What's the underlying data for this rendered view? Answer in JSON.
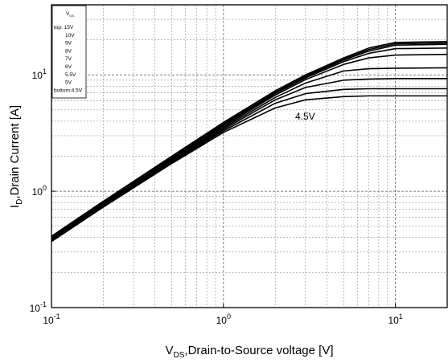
{
  "chart_data": {
    "type": "line",
    "title": "",
    "xlabel": {
      "main": "V",
      "sub": "DS",
      "rest": ",Drain-to-Source voltage [V]"
    },
    "ylabel": {
      "main": "I",
      "sub": "D",
      "rest": ",Drain Current [A]"
    },
    "x_scale": "log",
    "y_scale": "log",
    "xlim": [
      0.1,
      20
    ],
    "ylim": [
      0.1,
      40
    ],
    "x_ticks": [
      {
        "value": 0.1,
        "base": "10",
        "exp": "-1"
      },
      {
        "value": 1,
        "base": "10",
        "exp": "0"
      },
      {
        "value": 10,
        "base": "10",
        "exp": "1"
      }
    ],
    "y_ticks": [
      {
        "value": 0.1,
        "base": "10",
        "exp": "-1"
      },
      {
        "value": 1,
        "base": "10",
        "exp": "0"
      },
      {
        "value": 10,
        "base": "10",
        "exp": "1"
      }
    ],
    "grid": true,
    "legend": {
      "position": "top-left",
      "title_main": "V",
      "title_sub": "GS",
      "entries": [
        "top: 15V",
        "10V",
        "9V",
        "8V",
        "7V",
        "6V",
        "5.5V",
        "5V",
        "bottom:4.5V"
      ]
    },
    "annotation": {
      "text": "4.5V",
      "x": 4.2,
      "y": 4.5
    },
    "series": [
      {
        "name": "15V",
        "x": [
          0.1,
          0.2,
          0.5,
          1,
          2,
          3,
          5,
          7,
          10,
          20
        ],
        "y": [
          0.41,
          0.82,
          2.0,
          3.9,
          7.3,
          10.0,
          14.0,
          17.0,
          19.0,
          19.3
        ]
      },
      {
        "name": "10V",
        "x": [
          0.1,
          0.2,
          0.5,
          1,
          2,
          3,
          5,
          7,
          10,
          20
        ],
        "y": [
          0.4,
          0.8,
          1.95,
          3.8,
          7.1,
          9.8,
          13.7,
          16.5,
          18.5,
          18.8
        ]
      },
      {
        "name": "9V",
        "x": [
          0.1,
          0.2,
          0.5,
          1,
          2,
          3,
          5,
          7,
          10,
          20
        ],
        "y": [
          0.4,
          0.79,
          1.93,
          3.75,
          7.0,
          9.6,
          13.4,
          16.0,
          18.0,
          18.3
        ]
      },
      {
        "name": "8V",
        "x": [
          0.1,
          0.2,
          0.5,
          1,
          2,
          3,
          5,
          7,
          10,
          20
        ],
        "y": [
          0.39,
          0.78,
          1.9,
          3.7,
          6.9,
          9.4,
          13.0,
          15.3,
          16.8,
          17.0
        ]
      },
      {
        "name": "7V",
        "x": [
          0.1,
          0.2,
          0.5,
          1,
          2,
          3,
          5,
          7,
          10,
          20
        ],
        "y": [
          0.39,
          0.77,
          1.87,
          3.6,
          6.7,
          9.1,
          12.3,
          14.0,
          14.8,
          15.0
        ]
      },
      {
        "name": "6V",
        "x": [
          0.1,
          0.2,
          0.5,
          1,
          2,
          3,
          5,
          7,
          10,
          20
        ],
        "y": [
          0.38,
          0.76,
          1.83,
          3.5,
          6.4,
          8.5,
          10.8,
          11.3,
          11.4,
          11.5
        ]
      },
      {
        "name": "5.5V",
        "x": [
          0.1,
          0.2,
          0.5,
          1,
          2,
          3,
          5,
          7,
          10,
          20
        ],
        "y": [
          0.38,
          0.75,
          1.8,
          3.4,
          6.1,
          7.8,
          9.0,
          9.2,
          9.3,
          9.3
        ]
      },
      {
        "name": "5V",
        "x": [
          0.1,
          0.2,
          0.5,
          1,
          2,
          3,
          5,
          7,
          10,
          20
        ],
        "y": [
          0.38,
          0.74,
          1.77,
          3.3,
          5.7,
          6.9,
          7.5,
          7.6,
          7.6,
          7.6
        ]
      },
      {
        "name": "4.5V",
        "x": [
          0.1,
          0.2,
          0.5,
          1,
          2,
          3,
          5,
          7,
          10,
          20
        ],
        "y": [
          0.37,
          0.73,
          1.73,
          3.2,
          5.2,
          6.1,
          6.5,
          6.6,
          6.6,
          6.6
        ]
      }
    ]
  }
}
